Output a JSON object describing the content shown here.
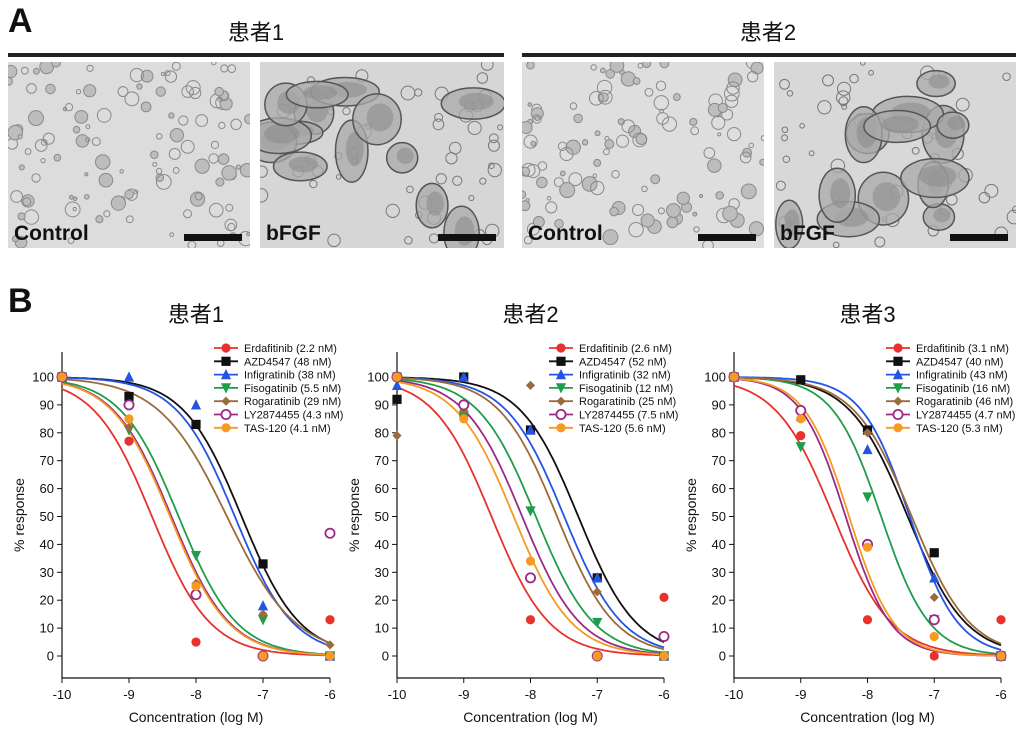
{
  "panel_a": {
    "letter": "A",
    "groups": [
      {
        "title": "患者1",
        "images": [
          {
            "label": "Control",
            "tone": "#dcdcdc",
            "blob_color": "#8a8a8a",
            "density": "many-small"
          },
          {
            "label": "bFGF",
            "tone": "#d6d6d6",
            "blob_color": "#7a7a7a",
            "density": "few-large"
          }
        ]
      },
      {
        "title": "患者2",
        "images": [
          {
            "label": "Control",
            "tone": "#dedede",
            "blob_color": "#8a8a8a",
            "density": "many-small"
          },
          {
            "label": "bFGF",
            "tone": "#d8d8d8",
            "blob_color": "#777777",
            "density": "few-large"
          }
        ]
      }
    ]
  },
  "panel_b": {
    "letter": "B"
  },
  "chart_data": [
    {
      "type": "scatter",
      "title": "患者1",
      "xlabel": "Concentration (log M)",
      "ylabel": "% response",
      "xlim": [
        -10,
        -6
      ],
      "ylim": [
        -7,
        100
      ],
      "x_ticks": [
        "-10",
        "-9",
        "-8",
        "-7",
        "-6"
      ],
      "y_ticks": [
        "0",
        "10",
        "20",
        "30",
        "40",
        "50",
        "60",
        "70",
        "80",
        "90",
        "100"
      ],
      "legend_position": "top-right",
      "grid": false,
      "fit": "sigmoidal dose-response",
      "series": [
        {
          "name": "Erdafitinib (2.2 nM)",
          "color": "#e8322d",
          "marker": "circle-filled",
          "ic50_nM": 2.2,
          "hill": 1.0,
          "points": [
            [
              -10,
              100
            ],
            [
              -9,
              77
            ],
            [
              -8,
              5
            ],
            [
              -7,
              0
            ],
            [
              -6,
              13
            ]
          ]
        },
        {
          "name": "AZD4547 (48 nM)",
          "color": "#111111",
          "marker": "square-filled",
          "ic50_nM": 48,
          "hill": 1.0,
          "points": [
            [
              -10,
              100
            ],
            [
              -9,
              93
            ],
            [
              -8,
              83
            ],
            [
              -7,
              33
            ],
            [
              -6,
              0
            ]
          ]
        },
        {
          "name": "Infigratinib (38 nM)",
          "color": "#2454e6",
          "marker": "triangle-up",
          "ic50_nM": 38,
          "hill": 1.0,
          "points": [
            [
              -10,
              100
            ],
            [
              -9,
              100
            ],
            [
              -8,
              90
            ],
            [
              -7,
              18
            ],
            [
              -6,
              0
            ]
          ]
        },
        {
          "name": "Fisogatinib (5.5 nM)",
          "color": "#1e9e4a",
          "marker": "triangle-down",
          "ic50_nM": 5.5,
          "hill": 1.0,
          "points": [
            [
              -10,
              100
            ],
            [
              -9,
              81
            ],
            [
              -8,
              36
            ],
            [
              -7,
              13
            ],
            [
              -6,
              0
            ]
          ]
        },
        {
          "name": "Rogaratinib (29 nM)",
          "color": "#9b6b3b",
          "marker": "diamond",
          "ic50_nM": 29,
          "hill": 0.85,
          "points": [
            [
              -10,
              100
            ],
            [
              -9,
              82
            ],
            [
              -8,
              26
            ],
            [
              -7,
              15
            ],
            [
              -6,
              4
            ]
          ]
        },
        {
          "name": "LY2874455 (4.3 nM)",
          "color": "#9a2a86",
          "marker": "circle-open",
          "ic50_nM": 4.3,
          "hill": 1.0,
          "points": [
            [
              -10,
              100
            ],
            [
              -9,
              90
            ],
            [
              -8,
              22
            ],
            [
              -7,
              0
            ],
            [
              -6,
              44
            ]
          ]
        },
        {
          "name": "TAS-120 (4.1 nM)",
          "color": "#f59a23",
          "marker": "circle-filled",
          "ic50_nM": 4.1,
          "hill": 1.0,
          "points": [
            [
              -10,
              100
            ],
            [
              -9,
              85
            ],
            [
              -8,
              25
            ],
            [
              -7,
              0
            ],
            [
              -6,
              0
            ]
          ]
        }
      ]
    },
    {
      "type": "scatter",
      "title": "患者2",
      "xlabel": "Concentration (log M)",
      "ylabel": "% response",
      "xlim": [
        -10,
        -6
      ],
      "ylim": [
        -7,
        100
      ],
      "x_ticks": [
        "-10",
        "-9",
        "-8",
        "-7",
        "-6"
      ],
      "y_ticks": [
        "0",
        "10",
        "20",
        "30",
        "40",
        "50",
        "60",
        "70",
        "80",
        "90",
        "100"
      ],
      "legend_position": "top-right",
      "grid": false,
      "fit": "sigmoidal dose-response",
      "series": [
        {
          "name": "Erdafitinib (2.6 nM)",
          "color": "#e8322d",
          "marker": "circle-filled",
          "ic50_nM": 2.6,
          "hill": 1.0,
          "points": [
            [
              -10,
              100
            ],
            [
              -9,
              86
            ],
            [
              -8,
              13
            ],
            [
              -7,
              0
            ],
            [
              -6,
              21
            ]
          ]
        },
        {
          "name": "AZD4547 (52 nM)",
          "color": "#111111",
          "marker": "square-filled",
          "ic50_nM": 52,
          "hill": 1.0,
          "points": [
            [
              -10,
              92
            ],
            [
              -9,
              100
            ],
            [
              -8,
              81
            ],
            [
              -7,
              28
            ],
            [
              -6,
              0
            ]
          ]
        },
        {
          "name": "Infigratinib (32 nM)",
          "color": "#2454e6",
          "marker": "triangle-up",
          "ic50_nM": 32,
          "hill": 1.0,
          "points": [
            [
              -10,
              97
            ],
            [
              -9,
              100
            ],
            [
              -8,
              81
            ],
            [
              -7,
              28
            ],
            [
              -6,
              0
            ]
          ]
        },
        {
          "name": "Fisogatinib (12 nM)",
          "color": "#1e9e4a",
          "marker": "triangle-down",
          "ic50_nM": 12,
          "hill": 1.0,
          "points": [
            [
              -10,
              100
            ],
            [
              -9,
              86
            ],
            [
              -8,
              52
            ],
            [
              -7,
              12
            ],
            [
              -6,
              0
            ]
          ]
        },
        {
          "name": "Rogaratinib (25 nM)",
          "color": "#9b6b3b",
          "marker": "diamond",
          "ic50_nM": 25,
          "hill": 1.0,
          "points": [
            [
              -10,
              79
            ],
            [
              -9,
              88
            ],
            [
              -8,
              97
            ],
            [
              -7,
              23
            ],
            [
              -6,
              0
            ]
          ]
        },
        {
          "name": "LY2874455 (7.5 nM)",
          "color": "#9a2a86",
          "marker": "circle-open",
          "ic50_nM": 7.5,
          "hill": 1.0,
          "points": [
            [
              -10,
              100
            ],
            [
              -9,
              90
            ],
            [
              -8,
              28
            ],
            [
              -7,
              0
            ],
            [
              -6,
              7
            ]
          ]
        },
        {
          "name": "TAS-120 (5.6 nM)",
          "color": "#f59a23",
          "marker": "circle-filled",
          "ic50_nM": 5.6,
          "hill": 1.0,
          "points": [
            [
              -10,
              100
            ],
            [
              -9,
              85
            ],
            [
              -8,
              34
            ],
            [
              -7,
              0
            ],
            [
              -6,
              0
            ]
          ]
        }
      ]
    },
    {
      "type": "scatter",
      "title": "患者3",
      "xlabel": "Concentration (log M)",
      "ylabel": "% response",
      "xlim": [
        -10,
        -6
      ],
      "ylim": [
        -7,
        100
      ],
      "x_ticks": [
        "-10",
        "-9",
        "-8",
        "-7",
        "-6"
      ],
      "y_ticks": [
        "0",
        "10",
        "20",
        "30",
        "40",
        "50",
        "60",
        "70",
        "80",
        "90",
        "100"
      ],
      "legend_position": "top-right",
      "grid": false,
      "fit": "sigmoidal dose-response",
      "series": [
        {
          "name": "Erdafitinib (3.1 nM)",
          "color": "#e8322d",
          "marker": "circle-filled",
          "ic50_nM": 3.1,
          "hill": 1.0,
          "points": [
            [
              -10,
              100
            ],
            [
              -9,
              79
            ],
            [
              -8,
              13
            ],
            [
              -7,
              0
            ],
            [
              -6,
              13
            ]
          ]
        },
        {
          "name": "AZD4547 (40 nM)",
          "color": "#111111",
          "marker": "square-filled",
          "ic50_nM": 40,
          "hill": 1.0,
          "points": [
            [
              -10,
              100
            ],
            [
              -9,
              99
            ],
            [
              -8,
              81
            ],
            [
              -7,
              37
            ],
            [
              -6,
              0
            ]
          ]
        },
        {
          "name": "Infigratinib (43 nM)",
          "color": "#2454e6",
          "marker": "triangle-up",
          "ic50_nM": 43,
          "hill": 1.2,
          "points": [
            [
              -10,
              100
            ],
            [
              -9,
              86
            ],
            [
              -8,
              74
            ],
            [
              -7,
              28
            ],
            [
              -6,
              0
            ]
          ]
        },
        {
          "name": "Fisogatinib (16 nM)",
          "color": "#1e9e4a",
          "marker": "triangle-down",
          "ic50_nM": 16,
          "hill": 1.2,
          "points": [
            [
              -10,
              100
            ],
            [
              -9,
              75
            ],
            [
              -8,
              57
            ],
            [
              -7,
              13
            ],
            [
              -6,
              0
            ]
          ]
        },
        {
          "name": "Rogaratinib (46 nM)",
          "color": "#9b6b3b",
          "marker": "diamond",
          "ic50_nM": 46,
          "hill": 1.0,
          "points": [
            [
              -10,
              100
            ],
            [
              -9,
              88
            ],
            [
              -8,
              80
            ],
            [
              -7,
              21
            ],
            [
              -6,
              0
            ]
          ]
        },
        {
          "name": "LY2874455 (4.7 nM)",
          "color": "#9a2a86",
          "marker": "circle-open",
          "ic50_nM": 4.7,
          "hill": 1.3,
          "points": [
            [
              -10,
              100
            ],
            [
              -9,
              88
            ],
            [
              -8,
              40
            ],
            [
              -7,
              13
            ],
            [
              -6,
              0
            ]
          ]
        },
        {
          "name": "TAS-120 (5.3 nM)",
          "color": "#f59a23",
          "marker": "circle-filled",
          "ic50_nM": 5.3,
          "hill": 1.3,
          "points": [
            [
              -10,
              100
            ],
            [
              -9,
              85
            ],
            [
              -8,
              39
            ],
            [
              -7,
              7
            ],
            [
              -6,
              0
            ]
          ]
        }
      ]
    }
  ]
}
